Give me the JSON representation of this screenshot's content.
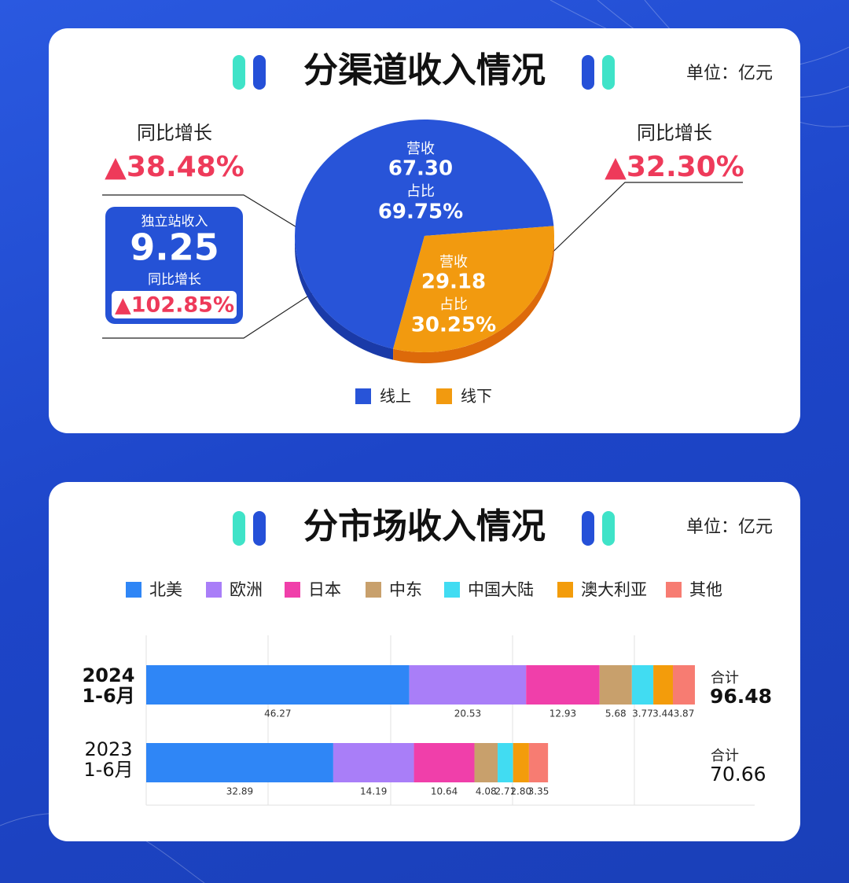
{
  "chart_data": [
    {
      "type": "pie",
      "title": "分渠道收入情况",
      "unit": "单位：亿元",
      "categories": [
        "线上",
        "线下"
      ],
      "colors": [
        "#2854d8",
        "#f29a0f"
      ],
      "values": [
        69.75,
        30.25
      ],
      "value_labels": [
        "69.75%",
        "30.25%"
      ],
      "share_label": "占比",
      "revenue_label": "营收",
      "revenue": [
        67.3,
        29.18
      ],
      "revenue_labels": [
        "67.30",
        "29.18"
      ],
      "growth_label": "同比增长",
      "growth": [
        38.48,
        32.3
      ],
      "growth_labels": [
        "▲38.48%",
        "▲32.30%"
      ],
      "online_store": {
        "label": "独立站收入",
        "value": 9.25,
        "growth_label": "同比增长",
        "growth": 102.85,
        "growth_value_label": "▲102.85%"
      }
    },
    {
      "type": "stacked-bar",
      "title": "分市场收入情况",
      "unit": "单位：亿元",
      "categories": [
        "2024\n1-6月",
        "2023\n1-6月"
      ],
      "xlim": [
        0,
        107
      ],
      "series": [
        {
          "name": "北美",
          "color": "#2f86f6",
          "values": [
            46.27,
            32.89
          ]
        },
        {
          "name": "欧洲",
          "color": "#a97ef8",
          "values": [
            20.53,
            14.19
          ]
        },
        {
          "name": "日本",
          "color": "#f03faa",
          "values": [
            12.93,
            10.64
          ]
        },
        {
          "name": "中东",
          "color": "#c8a06c",
          "values": [
            5.68,
            4.08
          ]
        },
        {
          "name": "中国大陆",
          "color": "#41dcf2",
          "values": [
            3.77,
            2.71
          ]
        },
        {
          "name": "澳大利亚",
          "color": "#f39c0b",
          "values": [
            3.44,
            2.8
          ],
          "value_labels": [
            "3.44",
            "2.80"
          ]
        },
        {
          "name": "其他",
          "color": "#f77c72",
          "values": [
            3.87,
            3.35
          ]
        }
      ],
      "total_label": "合计",
      "totals": [
        96.48,
        70.66
      ]
    }
  ]
}
